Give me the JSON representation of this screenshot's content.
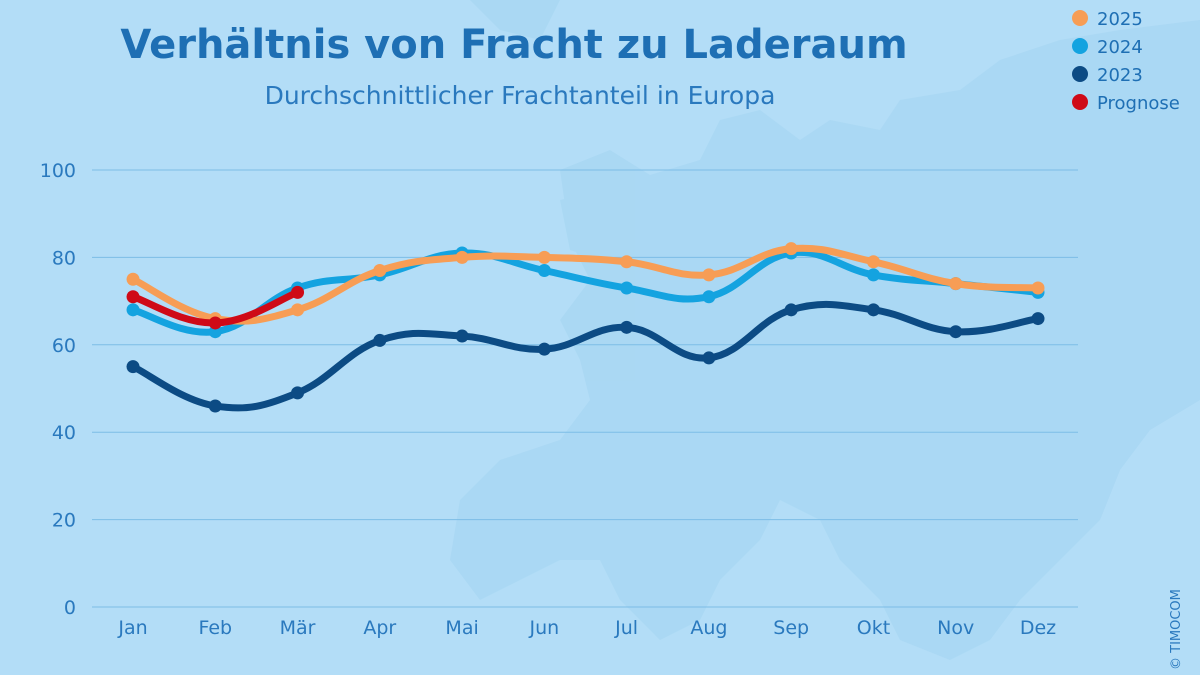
{
  "colors": {
    "background": "#b3ddf7",
    "series_2025": "#f79d55",
    "series_2024": "#14a3e0",
    "series_2023": "#0c4b84",
    "prognose": "#cf0a17",
    "text": "#1e6fb4",
    "grid": "#7cbde6"
  },
  "copyright": "© TIMOCOM",
  "chart_data": {
    "type": "line",
    "title": "Verhältnis von Fracht zu Laderaum",
    "subtitle": "Durchschnittlicher Frachtanteil in Europa",
    "xlabel": "",
    "ylabel": "",
    "ylim": [
      0,
      100
    ],
    "yticks": [
      0,
      20,
      40,
      60,
      80,
      100
    ],
    "grid": true,
    "legend_position": "top-right",
    "categories": [
      "Jan",
      "Feb",
      "Mär",
      "Apr",
      "Mai",
      "Jun",
      "Jul",
      "Aug",
      "Sep",
      "Okt",
      "Nov",
      "Dez"
    ],
    "series": [
      {
        "name": "2023",
        "color": "#0c4b84",
        "values": [
          55,
          46,
          49,
          61,
          62,
          59,
          64,
          57,
          68,
          68,
          63,
          66
        ]
      },
      {
        "name": "2024",
        "color": "#14a3e0",
        "values": [
          68,
          63,
          73,
          76,
          81,
          77,
          73,
          71,
          81,
          76,
          74,
          72
        ]
      },
      {
        "name": "2025",
        "color": "#f79d55",
        "values": [
          75,
          66,
          68,
          77,
          80,
          80,
          79,
          76,
          82,
          79,
          74,
          73
        ]
      },
      {
        "name": "Prognose",
        "color": "#cf0a17",
        "values": [
          71,
          65,
          72,
          null,
          null,
          null,
          null,
          null,
          null,
          null,
          null,
          null
        ]
      }
    ],
    "legend": [
      {
        "label": "2025",
        "color": "#f79d55"
      },
      {
        "label": "2024",
        "color": "#14a3e0"
      },
      {
        "label": "2023",
        "color": "#0c4b84"
      },
      {
        "label": "Prognose",
        "color": "#cf0a17"
      }
    ]
  }
}
